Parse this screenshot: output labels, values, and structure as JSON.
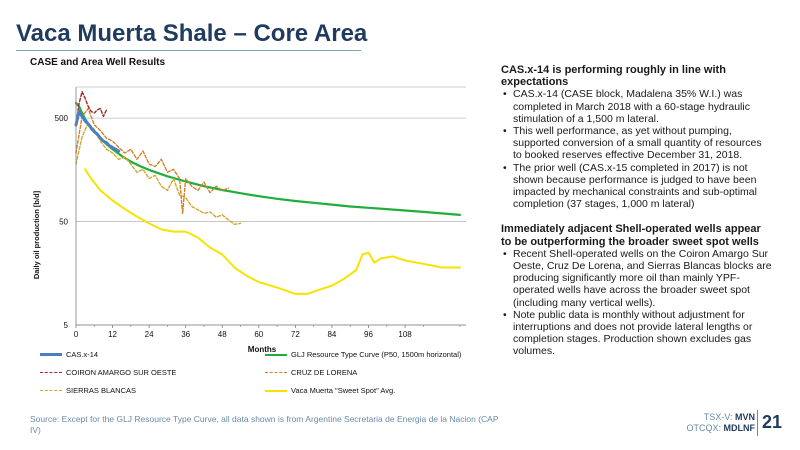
{
  "page": {
    "title": "Vaca Muerta Shale – Core Area",
    "subtitle": "CASE and Area Well Results",
    "source": "Source: Except for the GLJ Resource Type Curve, all data shown is from Argentine Secretaria de Energia de la Nacion (CAP IV)",
    "ticker_tsx": "TSX-V:",
    "ticker_tsx_sym": "MVN",
    "ticker_otc": "OTCQX:",
    "ticker_otc_sym": "MDLNF",
    "page_number": "21"
  },
  "right": {
    "heading1": "CAS.x-14 is performing roughly in line with expectations",
    "bullets1": [
      "CAS.x-14 (CASE block, Madalena 35% W.I.) was completed in March 2018 with a 60-stage hydraulic stimulation of a 1,500 m lateral.",
      "This well performance, as yet without pumping, supported conversion of a small quantity of resources to booked reserves effective December 31, 2018.",
      "The prior well (CAS.x-15 completed in 2017) is not shown because performance is judged to have been impacted by mechanical constraints and sub-optimal completion (37 stages, 1,000 m lateral)"
    ],
    "heading2": "Immediately adjacent Shell-operated wells appear to be outperforming the broader sweet spot wells",
    "bullets2": [
      "Recent Shell-operated wells on the Coiron Amargo Sur Oeste, Cruz De Lorena, and Sierras Blancas blocks are producing significantly more oil than mainly YPF-operated wells have across the broader sweet spot (including many vertical wells).",
      "Note public data is monthly without adjustment for interruptions and does not provide lateral lengths or completion stages. Production shown excludes gas volumes."
    ]
  },
  "chart_data": {
    "type": "line",
    "xlabel": "Months",
    "ylabel": "Daily oil production [b/d]",
    "x_scale": "linear",
    "y_scale": "log",
    "xlim": [
      0,
      128
    ],
    "ylim": [
      5,
      1000
    ],
    "x_ticks": [
      0,
      12,
      24,
      36,
      48,
      60,
      72,
      84,
      96,
      108
    ],
    "x_tick_labels": [
      "0",
      "12",
      "24",
      "36",
      "48",
      "60",
      "72",
      "84",
      "96",
      "108"
    ],
    "y_ticks": [
      5,
      50,
      500
    ],
    "y_tick_labels": [
      "5",
      "50",
      "500"
    ],
    "grid": "horizontal",
    "series": [
      {
        "name": "CAS.x-14",
        "color": "#4a7fc1",
        "dash": "solid",
        "width": 3,
        "x": [
          0,
          1,
          2,
          3,
          4,
          5,
          6,
          7,
          8,
          9,
          10,
          11,
          12,
          13,
          14
        ],
        "y": [
          430,
          580,
          520,
          470,
          440,
          400,
          370,
          350,
          320,
          300,
          290,
          270,
          260,
          250,
          240
        ]
      },
      {
        "name": "GLJ Resource Type Curve (P50, 1500m horizontal)",
        "color": "#1fae3c",
        "dash": "solid",
        "width": 2.2,
        "x": [
          0,
          1,
          2,
          3,
          4,
          6,
          8,
          10,
          12,
          15,
          18,
          21,
          24,
          30,
          36,
          42,
          48,
          54,
          60,
          66,
          72,
          78,
          84,
          90,
          96,
          102,
          108,
          114,
          120,
          126
        ],
        "y": [
          700,
          650,
          560,
          490,
          440,
          370,
          320,
          280,
          250,
          215,
          190,
          172,
          158,
          137,
          122,
          110,
          101,
          94,
          88,
          83,
          79,
          76,
          73,
          70,
          68,
          66,
          64,
          62,
          60,
          58
        ]
      },
      {
        "name": "COIRON AMARGO SUR OESTE",
        "color": "#9b2b2b",
        "dash": "dash",
        "width": 1.4,
        "x": [
          0,
          1,
          2,
          3,
          4,
          5,
          6,
          7,
          8,
          9,
          10
        ],
        "y": [
          420,
          690,
          900,
          780,
          650,
          580,
          560,
          600,
          620,
          520,
          600
        ]
      },
      {
        "name": "CRUZ DE LORENA",
        "color": "#d4802a",
        "dash": "dash",
        "width": 1.4,
        "x": [
          0,
          2,
          4,
          6,
          8,
          10,
          12,
          14,
          16,
          18,
          20,
          22,
          24,
          26,
          28,
          30,
          32,
          34,
          35,
          36,
          38,
          40,
          42,
          44,
          46,
          48,
          50
        ],
        "y": [
          230,
          520,
          620,
          430,
          380,
          320,
          300,
          260,
          230,
          250,
          200,
          240,
          180,
          170,
          200,
          150,
          160,
          130,
          60,
          130,
          110,
          100,
          120,
          95,
          110,
          100,
          105
        ]
      },
      {
        "name": "SIERRAS BLANCAS",
        "color": "#d4a62a",
        "dash": "dash",
        "width": 1.4,
        "x": [
          0,
          2,
          4,
          6,
          8,
          10,
          12,
          14,
          16,
          18,
          20,
          22,
          24,
          26,
          28,
          30,
          32,
          34,
          36,
          38,
          40,
          42,
          44,
          46,
          48,
          50,
          52,
          54
        ],
        "y": [
          180,
          330,
          450,
          390,
          300,
          250,
          230,
          200,
          210,
          180,
          150,
          160,
          130,
          140,
          110,
          100,
          130,
          90,
          85,
          70,
          65,
          60,
          62,
          55,
          58,
          52,
          47,
          48
        ]
      },
      {
        "name": "Vaca Muerta \"Sweet Spot\" Avg.",
        "color": "#f5e400",
        "dash": "solid",
        "width": 2,
        "x": [
          3,
          5,
          8,
          12,
          16,
          20,
          24,
          28,
          32,
          36,
          40,
          44,
          48,
          52,
          56,
          60,
          64,
          68,
          72,
          76,
          80,
          84,
          88,
          92,
          94,
          96,
          98,
          100,
          104,
          108,
          112,
          116,
          120,
          124,
          126
        ],
        "y": [
          160,
          130,
          100,
          80,
          66,
          56,
          48,
          42,
          40,
          40,
          35,
          28,
          24,
          18,
          15,
          13,
          12,
          11,
          10,
          10,
          11,
          12,
          14,
          17,
          24,
          25,
          20,
          22,
          23,
          21,
          20,
          19,
          18,
          18,
          18
        ]
      }
    ]
  }
}
